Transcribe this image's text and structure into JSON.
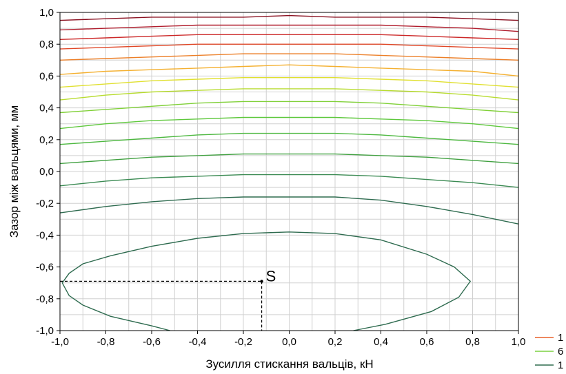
{
  "chart_data": {
    "type": "contour",
    "xlabel": "Зусилля стискання вальців, кН",
    "ylabel": "Зазор між вальцями, мм",
    "xlim": [
      -1.0,
      1.0
    ],
    "ylim": [
      -1.0,
      1.0
    ],
    "x_ticks": [
      "-1,0",
      "-0,8",
      "-0,6",
      "-0,4",
      "-0,2",
      "0,0",
      "0,2",
      "0,4",
      "0,6",
      "0,8",
      "1,0"
    ],
    "y_ticks": [
      "1,0",
      "0,8",
      "0,6",
      "0,4",
      "0,2",
      "0,0",
      "-0,2",
      "-0,4",
      "-0,6",
      "-0,8",
      "-1,0"
    ],
    "grid": true,
    "contours": [
      {
        "color": "#2e6b4f",
        "points": [
          [
            -0.52,
            -1.0
          ],
          [
            -0.6,
            -0.97
          ],
          [
            -0.78,
            -0.91
          ],
          [
            -0.9,
            -0.84
          ],
          [
            -0.96,
            -0.78
          ],
          [
            -0.99,
            -0.7
          ],
          [
            -0.96,
            -0.64
          ],
          [
            -0.9,
            -0.58
          ],
          [
            -0.78,
            -0.53
          ],
          [
            -0.6,
            -0.47
          ],
          [
            -0.4,
            -0.42
          ],
          [
            -0.2,
            -0.39
          ],
          [
            0.0,
            -0.38
          ],
          [
            0.2,
            -0.39
          ],
          [
            0.4,
            -0.43
          ],
          [
            0.6,
            -0.52
          ],
          [
            0.72,
            -0.6
          ],
          [
            0.79,
            -0.69
          ],
          [
            0.74,
            -0.79
          ],
          [
            0.62,
            -0.88
          ],
          [
            0.42,
            -0.96
          ],
          [
            0.28,
            -1.0
          ]
        ]
      },
      {
        "color": "#2e6b4f",
        "points": [
          [
            -1.0,
            -0.26
          ],
          [
            -0.8,
            -0.22
          ],
          [
            -0.6,
            -0.19
          ],
          [
            -0.4,
            -0.17
          ],
          [
            -0.2,
            -0.16
          ],
          [
            0.0,
            -0.16
          ],
          [
            0.2,
            -0.16
          ],
          [
            0.4,
            -0.18
          ],
          [
            0.6,
            -0.22
          ],
          [
            0.8,
            -0.27
          ],
          [
            1.0,
            -0.33
          ]
        ]
      },
      {
        "color": "#3a8a52",
        "points": [
          [
            -1.0,
            -0.09
          ],
          [
            -0.8,
            -0.06
          ],
          [
            -0.6,
            -0.04
          ],
          [
            -0.4,
            -0.03
          ],
          [
            -0.2,
            -0.02
          ],
          [
            0.0,
            -0.02
          ],
          [
            0.2,
            -0.02
          ],
          [
            0.4,
            -0.03
          ],
          [
            0.6,
            -0.05
          ],
          [
            0.8,
            -0.07
          ],
          [
            1.0,
            -0.1
          ]
        ]
      },
      {
        "color": "#40a040",
        "points": [
          [
            -1.0,
            0.05
          ],
          [
            -0.8,
            0.07
          ],
          [
            -0.6,
            0.09
          ],
          [
            -0.4,
            0.1
          ],
          [
            -0.2,
            0.11
          ],
          [
            0.0,
            0.11
          ],
          [
            0.2,
            0.11
          ],
          [
            0.4,
            0.1
          ],
          [
            0.6,
            0.09
          ],
          [
            0.8,
            0.07
          ],
          [
            1.0,
            0.05
          ]
        ]
      },
      {
        "color": "#4db840",
        "points": [
          [
            -1.0,
            0.17
          ],
          [
            -0.8,
            0.19
          ],
          [
            -0.6,
            0.21
          ],
          [
            -0.4,
            0.23
          ],
          [
            -0.2,
            0.24
          ],
          [
            0.0,
            0.24
          ],
          [
            0.2,
            0.24
          ],
          [
            0.4,
            0.23
          ],
          [
            0.6,
            0.21
          ],
          [
            0.8,
            0.19
          ],
          [
            1.0,
            0.17
          ]
        ]
      },
      {
        "color": "#5ec83c",
        "points": [
          [
            -1.0,
            0.27
          ],
          [
            -0.8,
            0.3
          ],
          [
            -0.6,
            0.32
          ],
          [
            -0.4,
            0.33
          ],
          [
            -0.2,
            0.34
          ],
          [
            0.0,
            0.34
          ],
          [
            0.2,
            0.34
          ],
          [
            0.4,
            0.33
          ],
          [
            0.6,
            0.32
          ],
          [
            0.8,
            0.3
          ],
          [
            1.0,
            0.27
          ]
        ]
      },
      {
        "color": "#80d038",
        "points": [
          [
            -1.0,
            0.37
          ],
          [
            -0.8,
            0.39
          ],
          [
            -0.6,
            0.41
          ],
          [
            -0.4,
            0.43
          ],
          [
            -0.2,
            0.44
          ],
          [
            0.0,
            0.44
          ],
          [
            0.2,
            0.44
          ],
          [
            0.4,
            0.43
          ],
          [
            0.6,
            0.41
          ],
          [
            0.8,
            0.39
          ],
          [
            1.0,
            0.37
          ]
        ]
      },
      {
        "color": "#b8dc30",
        "points": [
          [
            -1.0,
            0.45
          ],
          [
            -0.8,
            0.48
          ],
          [
            -0.6,
            0.5
          ],
          [
            -0.4,
            0.51
          ],
          [
            -0.2,
            0.52
          ],
          [
            0.0,
            0.52
          ],
          [
            0.2,
            0.52
          ],
          [
            0.4,
            0.51
          ],
          [
            0.6,
            0.5
          ],
          [
            0.8,
            0.48
          ],
          [
            1.0,
            0.45
          ]
        ]
      },
      {
        "color": "#e0e030",
        "points": [
          [
            -1.0,
            0.53
          ],
          [
            -0.8,
            0.55
          ],
          [
            -0.6,
            0.57
          ],
          [
            -0.4,
            0.58
          ],
          [
            -0.2,
            0.59
          ],
          [
            0.0,
            0.59
          ],
          [
            0.2,
            0.59
          ],
          [
            0.4,
            0.58
          ],
          [
            0.6,
            0.57
          ],
          [
            0.8,
            0.55
          ],
          [
            1.0,
            0.53
          ]
        ]
      },
      {
        "color": "#f4b030",
        "points": [
          [
            -1.0,
            0.61
          ],
          [
            -0.8,
            0.63
          ],
          [
            -0.6,
            0.64
          ],
          [
            -0.4,
            0.65
          ],
          [
            -0.2,
            0.66
          ],
          [
            0.0,
            0.67
          ],
          [
            0.2,
            0.66
          ],
          [
            0.4,
            0.65
          ],
          [
            0.6,
            0.64
          ],
          [
            0.8,
            0.63
          ],
          [
            1.0,
            0.6
          ]
        ]
      },
      {
        "color": "#ec7f28",
        "points": [
          [
            -1.0,
            0.7
          ],
          [
            -0.8,
            0.71
          ],
          [
            -0.6,
            0.72
          ],
          [
            -0.4,
            0.73
          ],
          [
            -0.2,
            0.74
          ],
          [
            0.0,
            0.74
          ],
          [
            0.2,
            0.74
          ],
          [
            0.4,
            0.73
          ],
          [
            0.6,
            0.72
          ],
          [
            0.8,
            0.71
          ],
          [
            1.0,
            0.7
          ]
        ]
      },
      {
        "color": "#e04828",
        "points": [
          [
            -1.0,
            0.77
          ],
          [
            -0.8,
            0.78
          ],
          [
            -0.6,
            0.79
          ],
          [
            -0.4,
            0.8
          ],
          [
            -0.2,
            0.8
          ],
          [
            0.0,
            0.8
          ],
          [
            0.2,
            0.8
          ],
          [
            0.4,
            0.8
          ],
          [
            0.6,
            0.79
          ],
          [
            0.8,
            0.78
          ],
          [
            1.0,
            0.77
          ]
        ]
      },
      {
        "color": "#cc2828",
        "points": [
          [
            -1.0,
            0.83
          ],
          [
            -0.8,
            0.84
          ],
          [
            -0.6,
            0.85
          ],
          [
            -0.4,
            0.86
          ],
          [
            -0.2,
            0.86
          ],
          [
            0.0,
            0.86
          ],
          [
            0.2,
            0.86
          ],
          [
            0.4,
            0.86
          ],
          [
            0.6,
            0.85
          ],
          [
            0.8,
            0.84
          ],
          [
            1.0,
            0.83
          ]
        ]
      },
      {
        "color": "#b01c2c",
        "points": [
          [
            -1.0,
            0.89
          ],
          [
            -0.8,
            0.9
          ],
          [
            -0.6,
            0.91
          ],
          [
            -0.4,
            0.92
          ],
          [
            -0.2,
            0.92
          ],
          [
            0.0,
            0.92
          ],
          [
            0.2,
            0.92
          ],
          [
            0.4,
            0.92
          ],
          [
            0.6,
            0.91
          ],
          [
            0.8,
            0.9
          ],
          [
            1.0,
            0.88
          ]
        ]
      },
      {
        "color": "#8a1020",
        "points": [
          [
            -1.0,
            0.95
          ],
          [
            -0.8,
            0.96
          ],
          [
            -0.6,
            0.97
          ],
          [
            -0.4,
            0.97
          ],
          [
            -0.2,
            0.97
          ],
          [
            0.0,
            0.98
          ],
          [
            0.2,
            0.97
          ],
          [
            0.4,
            0.97
          ],
          [
            0.6,
            0.97
          ],
          [
            0.8,
            0.96
          ],
          [
            1.0,
            0.95
          ]
        ]
      }
    ],
    "annotation": {
      "label": "S",
      "x": -0.12,
      "y": -0.69
    },
    "legend": {
      "placement": "bottom-right",
      "entries": [
        {
          "label": "1",
          "color": "#e8602a"
        },
        {
          "label": "6",
          "color": "#7cd040"
        },
        {
          "label": "1",
          "color": "#2e6b4f"
        }
      ]
    }
  }
}
